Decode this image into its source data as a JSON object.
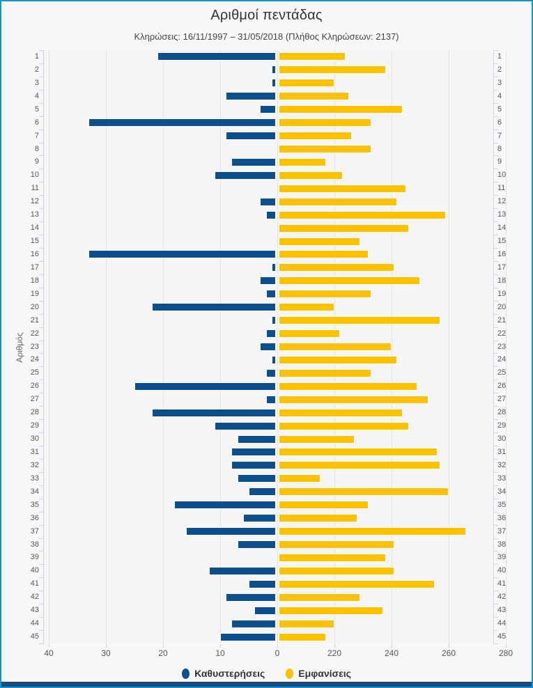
{
  "header": {
    "title": "Αριθμοί πεντάδας",
    "subtitle": "Κληρώσεις: 16/11/1997 – 31/05/2018 (Πλήθος Κληρώσεων: 2137)"
  },
  "legend": {
    "delays": "Καθυστερήσεις",
    "appearances": "Εμφανίσεις"
  },
  "axes": {
    "y_title": "Αριθμός",
    "x_ticks_left": [
      40,
      30,
      20,
      10,
      0
    ],
    "x_ticks_right": [
      220,
      240,
      260,
      280
    ]
  },
  "colors": {
    "delays": "#0d4f8c",
    "appearances": "#fcc200",
    "frame_border": "#1295cc",
    "footer_strip": "#1a4a80",
    "plot_background": "#f5f5f5",
    "page_background": "#f7f7f7"
  },
  "chart_data": {
    "type": "bar",
    "orientation": "horizontal-diverging",
    "title": "Αριθμοί πεντάδας",
    "subtitle": "Κληρώσεις: 16/11/1997 – 31/05/2018 (Πλήθος Κληρώσεων: 2137)",
    "ylabel": "Αριθμός",
    "grid": true,
    "legend_position": "bottom",
    "categories": [
      1,
      2,
      3,
      4,
      5,
      6,
      7,
      8,
      9,
      10,
      11,
      12,
      13,
      14,
      15,
      16,
      17,
      18,
      19,
      20,
      21,
      22,
      23,
      24,
      25,
      26,
      27,
      28,
      29,
      30,
      31,
      32,
      33,
      34,
      35,
      36,
      37,
      38,
      39,
      40,
      41,
      42,
      43,
      44,
      45
    ],
    "series": [
      {
        "name": "Καθυστερήσεις",
        "color": "#0d4f8c",
        "direction": "left",
        "axis_range": [
          0,
          45
        ],
        "axis_ticks": [
          40,
          30,
          20,
          10,
          0
        ],
        "values": [
          21,
          1,
          1,
          9,
          3,
          33,
          9,
          0,
          8,
          11,
          0,
          3,
          2,
          0,
          0,
          33,
          1,
          3,
          2,
          22,
          1,
          2,
          3,
          1,
          2,
          25,
          2,
          22,
          11,
          7,
          8,
          8,
          7,
          5,
          18,
          6,
          16,
          7,
          0,
          12,
          5,
          9,
          4,
          8,
          10
        ]
      },
      {
        "name": "Εμφανίσεις",
        "color": "#fcc200",
        "direction": "right",
        "axis_range": [
          200,
          285
        ],
        "axis_ticks": [
          220,
          240,
          260,
          280
        ],
        "values": [
          224,
          238,
          220,
          225,
          244,
          233,
          226,
          233,
          217,
          223,
          245,
          242,
          259,
          246,
          229,
          232,
          241,
          250,
          233,
          220,
          257,
          222,
          240,
          242,
          233,
          249,
          253,
          244,
          246,
          227,
          256,
          257,
          215,
          260,
          232,
          228,
          266,
          241,
          238,
          241,
          255,
          229,
          237,
          220,
          217
        ]
      }
    ]
  }
}
